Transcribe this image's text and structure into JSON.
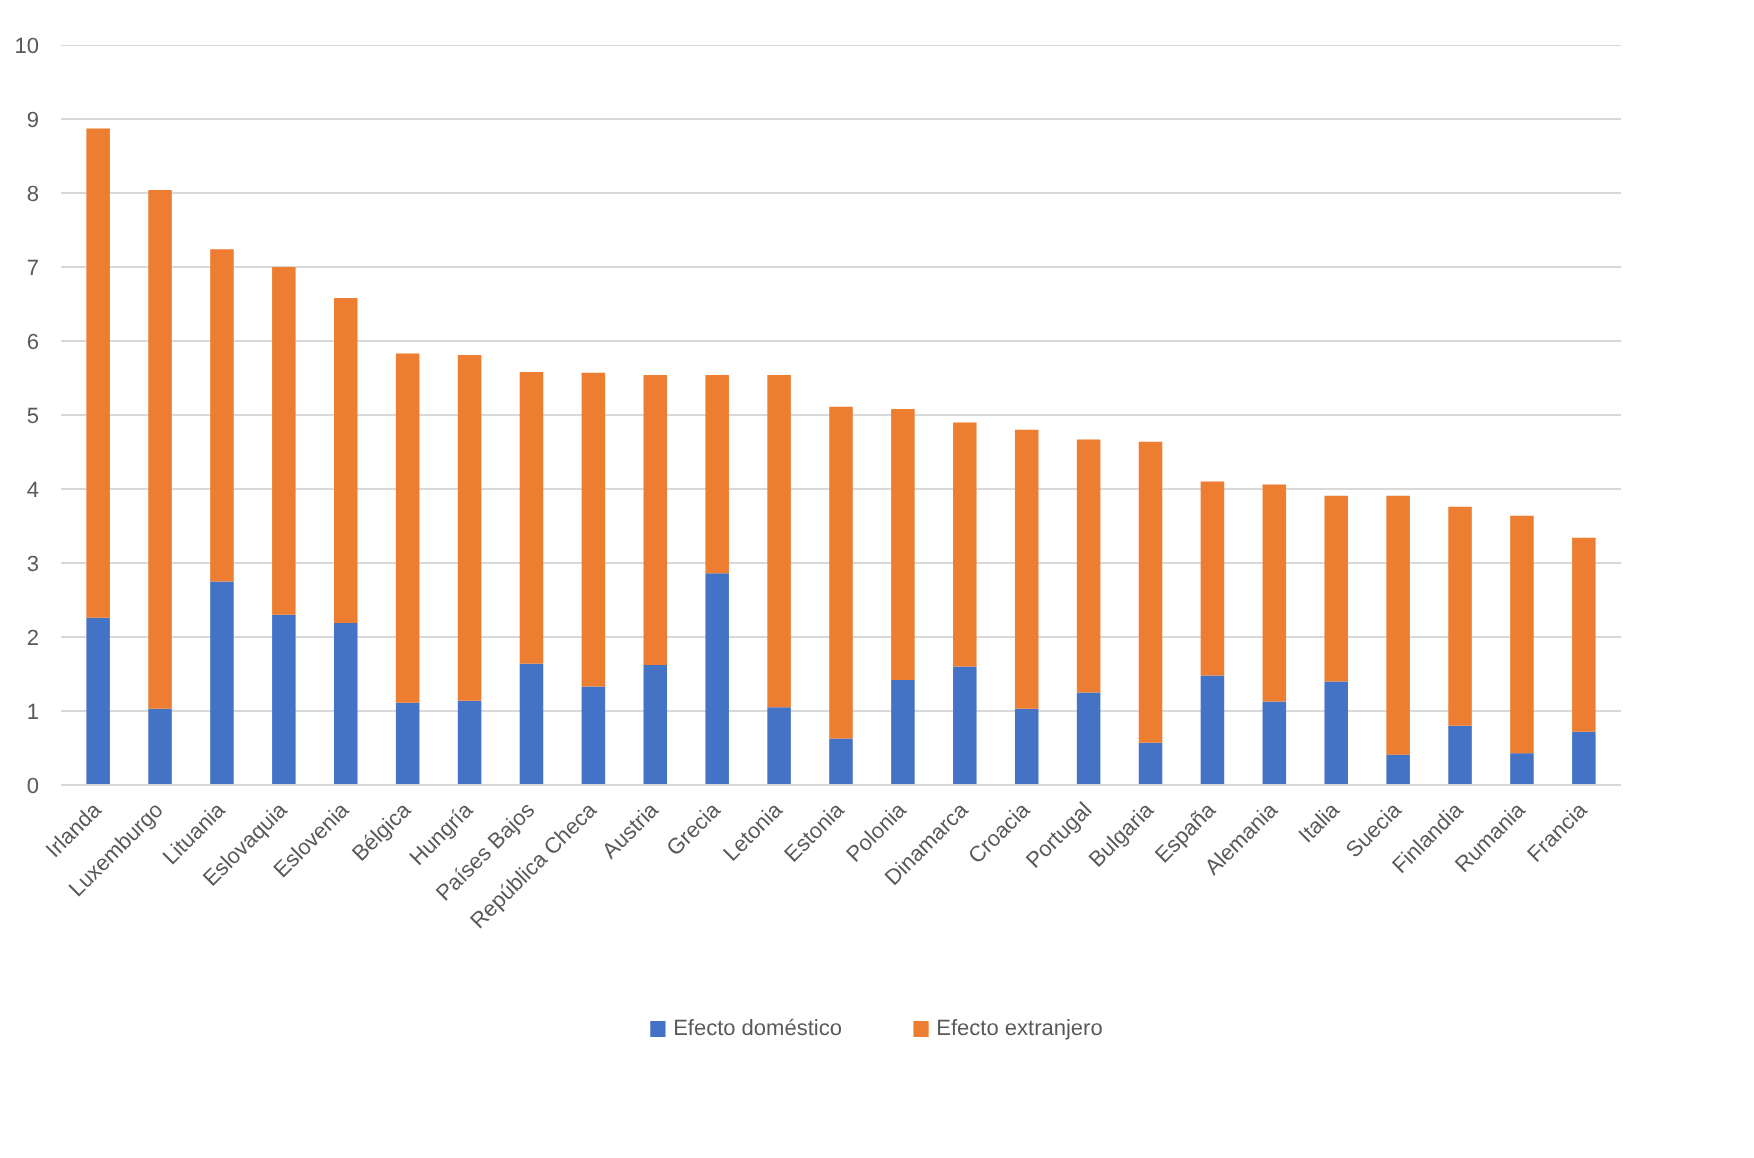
{
  "chart_data": {
    "type": "bar",
    "stacked": true,
    "categories": [
      "Irlanda",
      "Luxemburgo",
      "Lituania",
      "Eslovaquia",
      "Eslovenia",
      "Bélgica",
      "Hungría",
      "Países Bajos",
      "República Checa",
      "Austria",
      "Grecia",
      "Letonia",
      "Estonia",
      "Polonia",
      "Dinamarca",
      "Croacia",
      "Portugal",
      "Bulgaria",
      "España",
      "Alemania",
      "Italia",
      "Suecia",
      "Finlandia",
      "Rumania",
      "Francia"
    ],
    "series": [
      {
        "name": "Efecto doméstico",
        "color": "#4472c4",
        "values": [
          2.26,
          1.03,
          2.75,
          2.3,
          2.19,
          1.11,
          1.14,
          1.64,
          1.33,
          1.62,
          2.86,
          1.05,
          0.63,
          1.42,
          1.6,
          1.03,
          1.25,
          0.57,
          1.48,
          1.13,
          1.4,
          0.41,
          0.8,
          0.43,
          0.72
        ]
      },
      {
        "name": "Efecto extranjero",
        "color": "#ed7d31",
        "values": [
          6.61,
          7.01,
          4.49,
          4.7,
          4.39,
          4.72,
          4.67,
          3.94,
          4.24,
          3.92,
          2.68,
          4.49,
          4.48,
          3.66,
          3.3,
          3.77,
          3.42,
          4.07,
          2.62,
          2.93,
          2.51,
          3.5,
          2.96,
          3.21,
          2.62
        ]
      }
    ],
    "ylim": [
      0,
      10
    ],
    "yticks": [
      0,
      1,
      2,
      3,
      4,
      5,
      6,
      7,
      8,
      9,
      10
    ],
    "grid": "y",
    "legend": "bottom"
  }
}
